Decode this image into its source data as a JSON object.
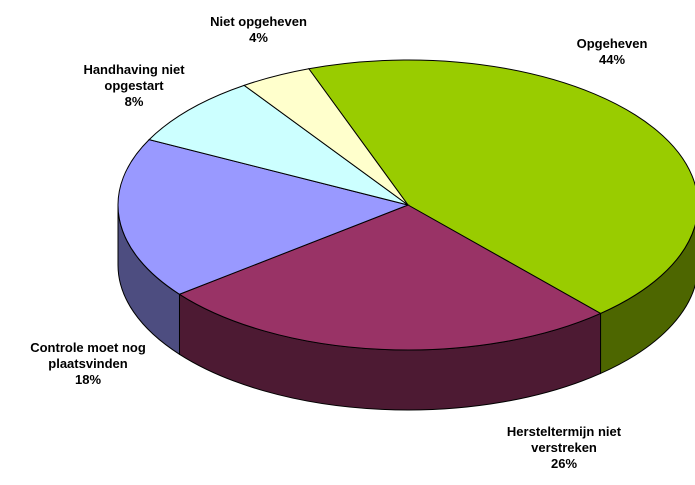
{
  "chart_data": {
    "type": "pie3d",
    "categories": [
      "Opgeheven",
      "Hersteltermijn niet verstreken",
      "Controle moet nog plaatsvinden",
      "Handhaving niet opgestart",
      "Niet opgeheven"
    ],
    "values": [
      44,
      26,
      18,
      8,
      4
    ],
    "value_labels": [
      "44%",
      "26%",
      "18%",
      "8%",
      "4%"
    ],
    "colors": [
      "#99cc00",
      "#993366",
      "#9999ff",
      "#ccffff",
      "#ffffcc"
    ]
  }
}
